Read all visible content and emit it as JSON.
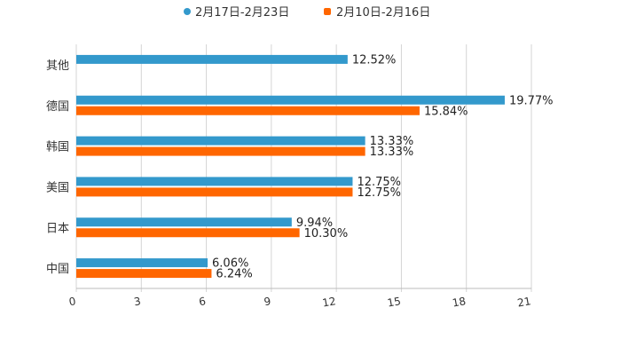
{
  "chart_data": {
    "type": "bar",
    "orientation": "horizontal",
    "title": "",
    "xlabel": "",
    "ylabel": "",
    "xlim": [
      0,
      21
    ],
    "ticks": [
      0,
      3,
      6,
      9,
      12,
      15,
      18,
      21
    ],
    "tick_labels": [
      "0",
      "3",
      "6",
      "9",
      "12",
      "15",
      "18",
      "21"
    ],
    "grid": true,
    "legend_position": "top-center",
    "categories": [
      "其他",
      "德国",
      "韩国",
      "美国",
      "日本",
      "中国"
    ],
    "series": [
      {
        "name": "2月17日-2月23日",
        "color": "#3399CC",
        "values": [
          12.52,
          19.77,
          13.33,
          12.75,
          9.94,
          6.06
        ],
        "labels": [
          "12.52%",
          "19.77%",
          "13.33%",
          "12.75%",
          "9.94%",
          "6.06%"
        ]
      },
      {
        "name": "2月10日-2月16日",
        "color": "#FF6600",
        "values": [
          null,
          15.84,
          13.33,
          12.75,
          10.3,
          6.24
        ],
        "labels": [
          null,
          "15.84%",
          "13.33%",
          "12.75%",
          "10.30%",
          "6.24%"
        ]
      }
    ]
  }
}
